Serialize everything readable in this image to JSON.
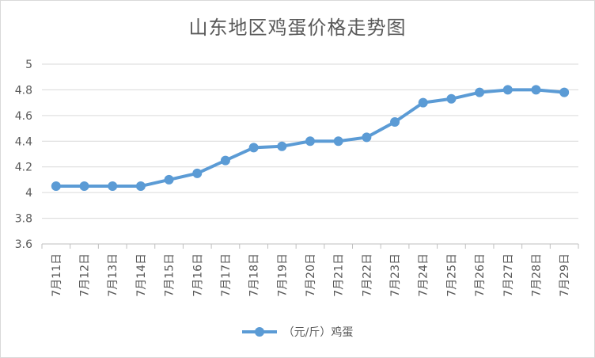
{
  "chart_data": {
    "type": "line",
    "title": "山东地区鸡蛋价格走势图",
    "categories": [
      "7月11日",
      "7月12日",
      "7月13日",
      "7月14日",
      "7月15日",
      "7月16日",
      "7月17日",
      "7月18日",
      "7月19日",
      "7月20日",
      "7月21日",
      "7月22日",
      "7月23日",
      "7月24日",
      "7月25日",
      "7月26日",
      "7月27日",
      "7月28日",
      "7月29日"
    ],
    "series": [
      {
        "name": "（元/斤）鸡蛋",
        "values": [
          4.05,
          4.05,
          4.05,
          4.05,
          4.1,
          4.15,
          4.25,
          4.35,
          4.36,
          4.4,
          4.4,
          4.43,
          4.55,
          4.7,
          4.73,
          4.78,
          4.8,
          4.8,
          4.78
        ],
        "color": "#5b9bd5"
      }
    ],
    "ylim": [
      3.6,
      5.0
    ],
    "yticks": [
      "3.6",
      "3.8",
      "4",
      "4.2",
      "4.4",
      "4.6",
      "4.8",
      "5"
    ],
    "xlabel": "",
    "ylabel": "",
    "grid": true,
    "legend_position": "bottom"
  }
}
